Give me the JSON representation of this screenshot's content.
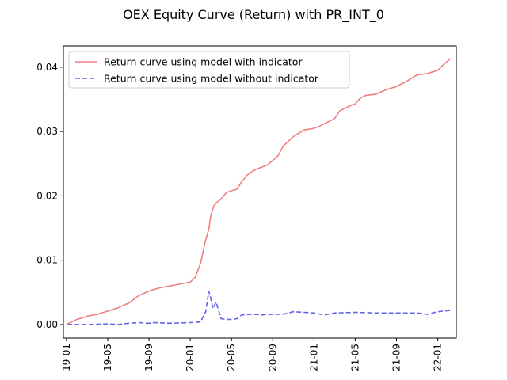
{
  "chart_data": {
    "type": "line",
    "title": "OEX Equity Curve (Return) with PR_INT_0",
    "xlabel": "",
    "ylabel": "",
    "x_ticks": [
      "19-01",
      "19-05",
      "19-09",
      "20-01",
      "20-05",
      "20-09",
      "21-01",
      "21-05",
      "21-09",
      "22-01"
    ],
    "x_ticks_months": [
      0,
      4,
      8,
      12,
      16,
      20,
      24,
      28,
      32,
      36
    ],
    "x_range_months": [
      -0.3,
      37.8
    ],
    "y_ticks": [
      0.0,
      0.01,
      0.02,
      0.03,
      0.04
    ],
    "y_tick_labels": [
      "0.00",
      "0.01",
      "0.02",
      "0.03",
      "0.04"
    ],
    "ylim": [
      -0.0021,
      0.0433
    ],
    "grid": false,
    "legend_position": "top-left",
    "series": [
      {
        "name": "Return curve using model with indicator",
        "color": "#f08080",
        "style": "solid",
        "x": [
          0.1,
          0.5,
          1.0,
          1.5,
          2.0,
          3.0,
          4.0,
          5.0,
          5.5,
          6.0,
          7.0,
          8.0,
          9.0,
          10.0,
          11.0,
          12.0,
          12.5,
          13.0,
          13.5,
          13.8,
          14.0,
          14.3,
          14.6,
          15.0,
          15.5,
          16.0,
          16.5,
          17.0,
          17.5,
          18.0,
          18.5,
          19.0,
          19.5,
          20.0,
          20.5,
          21.0,
          22.0,
          23.0,
          24.0,
          24.5,
          25.0,
          26.0,
          26.5,
          27.0,
          27.5,
          28.0,
          28.5,
          29.0,
          30.0,
          31.0,
          32.0,
          33.0,
          34.0,
          35.0,
          36.0,
          36.5,
          37.0,
          37.2
        ],
        "y": [
          0.0001,
          0.0004,
          0.0008,
          0.001,
          0.0013,
          0.0016,
          0.0021,
          0.0026,
          0.003,
          0.0033,
          0.0045,
          0.0052,
          0.0057,
          0.006,
          0.0063,
          0.0066,
          0.0074,
          0.0095,
          0.0132,
          0.0148,
          0.017,
          0.0185,
          0.019,
          0.0195,
          0.0205,
          0.0208,
          0.021,
          0.0222,
          0.0232,
          0.0238,
          0.0242,
          0.0245,
          0.0248,
          0.0255,
          0.0262,
          0.0277,
          0.0292,
          0.0302,
          0.0305,
          0.0308,
          0.0312,
          0.032,
          0.0332,
          0.0336,
          0.034,
          0.0343,
          0.0352,
          0.0356,
          0.0358,
          0.0365,
          0.037,
          0.0378,
          0.0388,
          0.039,
          0.0395,
          0.0403,
          0.041,
          0.0414
        ]
      },
      {
        "name": "Return curve using model without indicator",
        "color": "#6464e8",
        "style": "dashed",
        "x": [
          0.1,
          2.0,
          4.0,
          5.0,
          6.0,
          7.0,
          8.0,
          8.5,
          10.0,
          12.0,
          13.0,
          13.5,
          13.8,
          14.0,
          14.2,
          14.5,
          15.0,
          15.5,
          16.0,
          16.5,
          17.0,
          18.0,
          19.0,
          20.0,
          21.0,
          22.0,
          23.0,
          24.0,
          25.0,
          26.0,
          28.0,
          30.0,
          32.0,
          34.0,
          35.0,
          36.0,
          37.2
        ],
        "y": [
          0.0,
          0.0,
          0.0001,
          0.0,
          0.0002,
          0.0003,
          0.0002,
          0.0003,
          0.0002,
          0.0003,
          0.0004,
          0.002,
          0.0052,
          0.004,
          0.0025,
          0.0035,
          0.0009,
          0.0008,
          0.0008,
          0.0009,
          0.0015,
          0.0016,
          0.0015,
          0.0016,
          0.0016,
          0.002,
          0.0019,
          0.0018,
          0.0015,
          0.0018,
          0.0019,
          0.0018,
          0.0018,
          0.0018,
          0.0016,
          0.002,
          0.0022
        ]
      }
    ]
  }
}
